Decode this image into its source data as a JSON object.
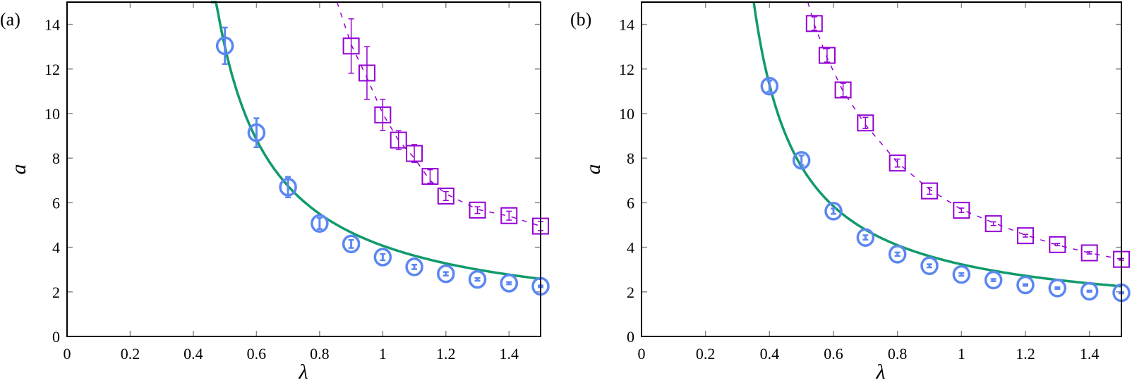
{
  "colors": {
    "circle": "#5b87f2",
    "fit": "#119a6c",
    "square": "#9400d3",
    "axis": "#000000",
    "tickmark": "#888888"
  },
  "chart_data": [
    {
      "type": "scatter",
      "panel_label": "(a)",
      "xlabel": "λ",
      "ylabel": "a",
      "xlim": [
        0,
        1.5
      ],
      "ylim": [
        0,
        15
      ],
      "xticks": [
        "0",
        "0.2",
        "0.4",
        "0.6",
        "0.8",
        "1",
        "1.2",
        "1.4"
      ],
      "xtick_values": [
        0,
        0.2,
        0.4,
        0.6,
        0.8,
        1,
        1.2,
        1.4
      ],
      "yticks": [
        "0",
        "2",
        "4",
        "6",
        "8",
        "10",
        "12",
        "14"
      ],
      "ytick_values": [
        0,
        2,
        4,
        6,
        8,
        10,
        12,
        14
      ],
      "grid": false,
      "circles": {
        "x": [
          0.5,
          0.6,
          0.7,
          0.8,
          0.9,
          1.0,
          1.1,
          1.2,
          1.3,
          1.4,
          1.5
        ],
        "y": [
          13.04,
          9.14,
          6.7,
          5.07,
          4.15,
          3.56,
          3.12,
          2.81,
          2.56,
          2.39,
          2.25
        ],
        "err": [
          0.82,
          0.65,
          0.46,
          0.25,
          0.18,
          0.14,
          0.1,
          0.08,
          0.06,
          0.05,
          0.04
        ]
      },
      "squares": {
        "x": [
          0.9,
          0.95,
          1.0,
          1.05,
          1.1,
          1.15,
          1.2,
          1.3,
          1.4,
          1.5
        ],
        "y": [
          13.03,
          11.82,
          9.94,
          8.81,
          8.21,
          7.18,
          6.3,
          5.67,
          5.42,
          4.95
        ],
        "err": [
          1.22,
          1.18,
          0.7,
          0.42,
          0.4,
          0.3,
          0.2,
          0.15,
          0.2,
          0.2
        ]
      },
      "dashed_curve": {
        "x": [
          0.855,
          0.9,
          0.95,
          1.0,
          1.05,
          1.1,
          1.15,
          1.2,
          1.3,
          1.4,
          1.5
        ],
        "y": [
          15,
          13.1,
          11.6,
          10.0,
          8.8,
          8.0,
          7.0,
          6.4,
          5.7,
          5.4,
          4.95
        ]
      },
      "fit_curve": {
        "A": 2.5,
        "b": 0.3,
        "c": 0.5,
        "x_start": 0.456,
        "x_end": 1.5
      }
    },
    {
      "type": "scatter",
      "panel_label": "(b)",
      "xlabel": "λ",
      "ylabel": "a",
      "xlim": [
        0,
        1.5
      ],
      "ylim": [
        0,
        15
      ],
      "xticks": [
        "0",
        "0.2",
        "0.4",
        "0.6",
        "0.8",
        "1",
        "1.2",
        "1.4"
      ],
      "xtick_values": [
        0,
        0.2,
        0.4,
        0.6,
        0.8,
        1,
        1.2,
        1.4
      ],
      "yticks": [
        "0",
        "2",
        "4",
        "6",
        "8",
        "10",
        "12",
        "14"
      ],
      "ytick_values": [
        0,
        2,
        4,
        6,
        8,
        10,
        12,
        14
      ],
      "grid": false,
      "circles": {
        "x": [
          0.4,
          0.5,
          0.6,
          0.7,
          0.8,
          0.9,
          1.0,
          1.1,
          1.2,
          1.3,
          1.4,
          1.5
        ],
        "y": [
          11.23,
          7.9,
          5.62,
          4.44,
          3.69,
          3.17,
          2.78,
          2.53,
          2.31,
          2.17,
          2.03,
          1.96
        ],
        "err": [
          0.25,
          0.22,
          0.12,
          0.1,
          0.08,
          0.07,
          0.06,
          0.05,
          0.04,
          0.04,
          0.03,
          0.03
        ]
      },
      "squares": {
        "x": [
          0.54,
          0.58,
          0.63,
          0.7,
          0.8,
          0.9,
          1.0,
          1.1,
          1.2,
          1.3,
          1.4,
          1.5
        ],
        "y": [
          14.04,
          12.61,
          11.06,
          9.58,
          7.78,
          6.53,
          5.66,
          5.06,
          4.52,
          4.12,
          3.75,
          3.46
        ],
        "err": [
          0.3,
          0.3,
          0.3,
          0.25,
          0.18,
          0.15,
          0.1,
          0.08,
          0.06,
          0.05,
          0.05,
          0.04
        ]
      },
      "dashed_curve": {
        "x": [
          0.52,
          0.54,
          0.58,
          0.63,
          0.7,
          0.8,
          0.9,
          1.0,
          1.1,
          1.2,
          1.3,
          1.4,
          1.5
        ],
        "y": [
          15,
          14.0,
          12.5,
          11.0,
          9.5,
          7.8,
          6.6,
          5.7,
          5.1,
          4.55,
          4.1,
          3.75,
          3.46
        ]
      },
      "fit_curve": {
        "A": 2.0,
        "b": 0.211,
        "c": 0.7,
        "x_start": 0.351,
        "x_end": 1.5
      }
    }
  ]
}
